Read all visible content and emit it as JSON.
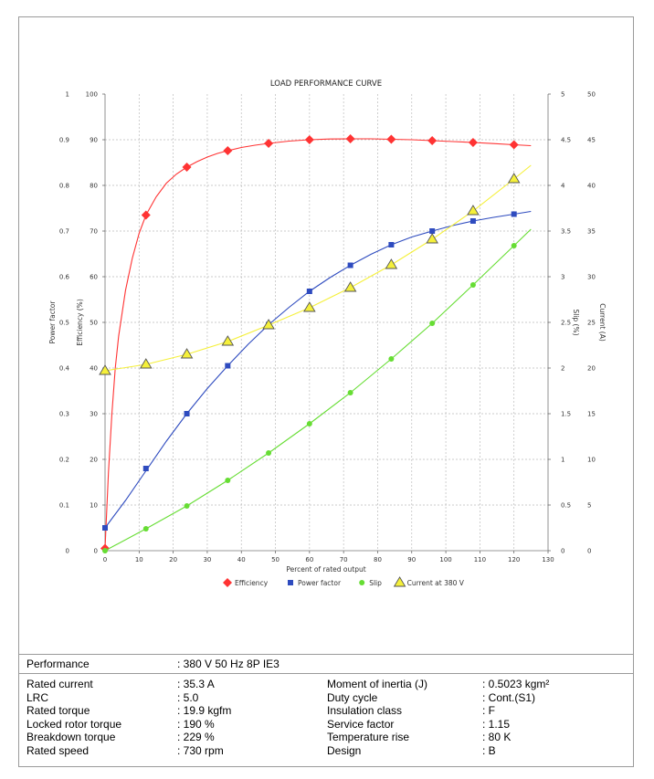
{
  "chart_data": {
    "type": "line",
    "title": "LOAD PERFORMANCE CURVE",
    "xlabel": "Percent of rated output",
    "xlim": [
      0,
      130
    ],
    "x_ticks": [
      "0",
      "10",
      "20",
      "30",
      "40",
      "50",
      "60",
      "70",
      "80",
      "90",
      "100",
      "110",
      "120",
      "130"
    ],
    "grid": true,
    "legend_position": "bottom",
    "axes": {
      "power_factor": {
        "label": "Power factor",
        "side": "left-outer",
        "lim": [
          0,
          1
        ],
        "ticks": [
          "0",
          "0.1",
          "0.2",
          "0.3",
          "0.4",
          "0.5",
          "0.6",
          "0.7",
          "0.8",
          "0.9",
          "1"
        ]
      },
      "efficiency": {
        "label": "Efficiency (%)",
        "side": "left",
        "lim": [
          0,
          100
        ],
        "ticks": [
          "0",
          "10",
          "20",
          "30",
          "40",
          "50",
          "60",
          "70",
          "80",
          "90",
          "100"
        ]
      },
      "slip": {
        "label": "Slip (%)",
        "side": "right",
        "lim": [
          0,
          5
        ],
        "ticks": [
          "0",
          "0.5",
          "1",
          "1.5",
          "2",
          "2.5",
          "3",
          "3.5",
          "4",
          "4.5",
          "5"
        ]
      },
      "current": {
        "label": "Current (A)",
        "side": "right-outer",
        "lim": [
          0,
          50
        ],
        "ticks": [
          "0",
          "5",
          "10",
          "15",
          "20",
          "25",
          "30",
          "35",
          "40",
          "45",
          "50"
        ]
      }
    },
    "series": [
      {
        "name": "Efficiency",
        "axis": "efficiency",
        "color": "#ff3333",
        "marker": "diamond",
        "x": [
          0,
          12,
          24,
          36,
          48,
          60,
          72,
          84,
          96,
          108,
          120
        ],
        "values": [
          0.5,
          73.5,
          84,
          87.6,
          89.2,
          90,
          90.2,
          90.1,
          89.8,
          89.4,
          88.9
        ],
        "curve_x": [
          0,
          1,
          2,
          3,
          4,
          6,
          8,
          10,
          12,
          15,
          18,
          21,
          24,
          27,
          30,
          33,
          36,
          40,
          44,
          48,
          54,
          60,
          66,
          72,
          78,
          84,
          90,
          96,
          102,
          108,
          114,
          120,
          125
        ],
        "curve_y": [
          0.5,
          17,
          30,
          40,
          47,
          57,
          64,
          69.5,
          73.5,
          77.5,
          80.5,
          82.5,
          84,
          85.2,
          86.2,
          87,
          87.6,
          88.3,
          88.8,
          89.2,
          89.7,
          90,
          90.15,
          90.2,
          90.2,
          90.1,
          90,
          89.8,
          89.6,
          89.4,
          89.15,
          88.9,
          88.7
        ]
      },
      {
        "name": "Power factor",
        "axis": "power_factor",
        "color": "#2e4bbf",
        "marker": "square",
        "x": [
          0,
          12,
          24,
          36,
          48,
          60,
          72,
          84,
          96,
          108,
          120
        ],
        "values": [
          0.05,
          0.18,
          0.3,
          0.405,
          0.495,
          0.568,
          0.625,
          0.67,
          0.7,
          0.722,
          0.737
        ],
        "curve_x": [
          0,
          6,
          12,
          18,
          24,
          30,
          36,
          42,
          48,
          54,
          60,
          66,
          72,
          78,
          84,
          90,
          96,
          102,
          108,
          114,
          120,
          125
        ],
        "curve_y": [
          0.05,
          0.11,
          0.175,
          0.24,
          0.3,
          0.355,
          0.405,
          0.452,
          0.495,
          0.533,
          0.568,
          0.598,
          0.625,
          0.649,
          0.67,
          0.687,
          0.7,
          0.712,
          0.722,
          0.73,
          0.737,
          0.743
        ]
      },
      {
        "name": "Slip",
        "axis": "slip",
        "color": "#66dd33",
        "marker": "circle",
        "x": [
          0,
          12,
          24,
          36,
          48,
          60,
          72,
          84,
          96,
          108,
          120
        ],
        "values": [
          0,
          0.24,
          0.49,
          0.77,
          1.07,
          1.39,
          1.73,
          2.1,
          2.49,
          2.91,
          3.34
        ],
        "curve_x": [
          0,
          12,
          24,
          36,
          48,
          60,
          72,
          84,
          96,
          108,
          120,
          125
        ],
        "curve_y": [
          0,
          0.24,
          0.49,
          0.77,
          1.07,
          1.39,
          1.73,
          2.1,
          2.49,
          2.91,
          3.34,
          3.52
        ]
      },
      {
        "name": "Current at 380 V",
        "axis": "current",
        "color": "#f5f03a",
        "marker": "triangle",
        "x": [
          0,
          12,
          24,
          36,
          48,
          60,
          72,
          84,
          96,
          108,
          120
        ],
        "values": [
          19.7,
          20.4,
          21.5,
          22.9,
          24.7,
          26.6,
          28.8,
          31.3,
          34.1,
          37.2,
          40.7
        ],
        "curve_x": [
          0,
          12,
          24,
          36,
          48,
          60,
          72,
          84,
          96,
          108,
          120,
          125
        ],
        "curve_y": [
          19.7,
          20.4,
          21.5,
          22.9,
          24.7,
          26.6,
          28.8,
          31.3,
          34.1,
          37.2,
          40.7,
          42.2
        ]
      }
    ]
  },
  "table": {
    "performance_label": "Performance",
    "performance_value": ": 380 V 50 Hz 8P IE3",
    "rows": [
      {
        "label1": "Rated current",
        "value1": ": 35.3 A",
        "label2": "Moment of inertia (J)",
        "value2": ": 0.5023 kgm²"
      },
      {
        "label1": "LRC",
        "value1": ": 5.0",
        "label2": "Duty cycle",
        "value2": ": Cont.(S1)"
      },
      {
        "label1": "Rated torque",
        "value1": ": 19.9 kgfm",
        "label2": "Insulation class",
        "value2": ": F"
      },
      {
        "label1": "Locked rotor torque",
        "value1": ": 190 %",
        "label2": "Service factor",
        "value2": ": 1.15"
      },
      {
        "label1": "Breakdown torque",
        "value1": ": 229 %",
        "label2": "Temperature rise",
        "value2": ": 80 K"
      },
      {
        "label1": "Rated speed",
        "value1": ": 730 rpm",
        "label2": "Design",
        "value2": ": B"
      }
    ]
  }
}
